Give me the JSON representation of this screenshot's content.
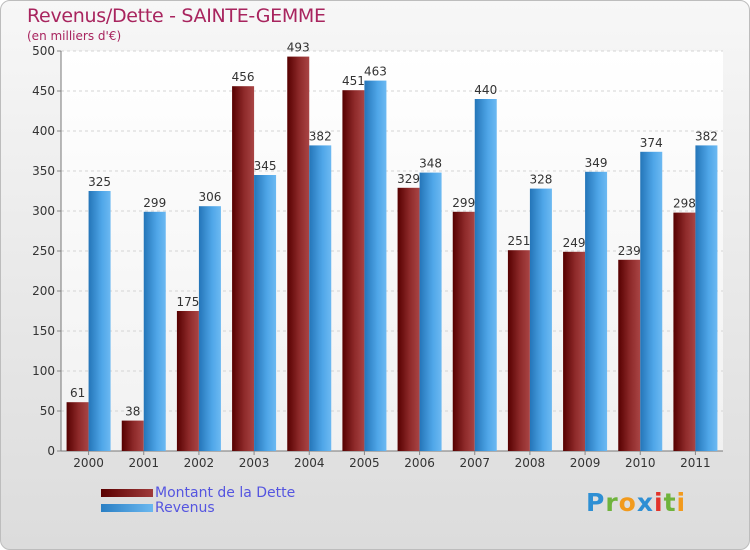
{
  "title": "Revenus/Dette - SAINTE-GEMME",
  "subtitle": "(en milliers d'€)",
  "logo": {
    "letters": [
      "P",
      "r",
      "o",
      "x",
      "i",
      "t",
      "i"
    ],
    "colors": [
      "#2e8fd4",
      "#6fb33c",
      "#f29a1c",
      "#2e8fd4",
      "#e2332a",
      "#6fb33c",
      "#f29a1c"
    ]
  },
  "chart_data": {
    "type": "bar",
    "categories": [
      "2000",
      "2001",
      "2002",
      "2003",
      "2004",
      "2005",
      "2006",
      "2007",
      "2008",
      "2009",
      "2010",
      "2011"
    ],
    "series": [
      {
        "name": "Montant de la Dette",
        "values": [
          61,
          38,
          175,
          456,
          493,
          451,
          329,
          299,
          251,
          249,
          239,
          298
        ],
        "color": "#7a1a1a"
      },
      {
        "name": "Revenus",
        "values": [
          325,
          299,
          306,
          345,
          382,
          463,
          348,
          440,
          328,
          349,
          374,
          382
        ],
        "color": "#4aa3e6"
      }
    ],
    "ylim": [
      0,
      500
    ],
    "yticks": [
      0,
      50,
      100,
      150,
      200,
      250,
      300,
      350,
      400,
      450,
      500
    ],
    "grid": true,
    "legend": "bottom-left"
  }
}
